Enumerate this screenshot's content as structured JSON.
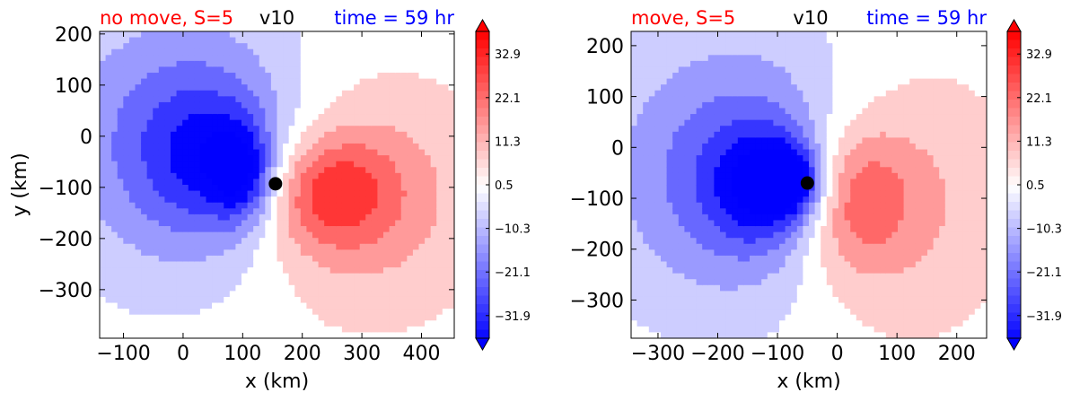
{
  "chart_data": [
    {
      "type": "heatmap",
      "title_left": "no move, S=5",
      "title_center": "v10",
      "title_right": "time = 59 hr",
      "xlabel": "x (km)",
      "ylabel": "y (km)",
      "xlim": [
        -140,
        455
      ],
      "ylim": [
        -395,
        205
      ],
      "xticks": [
        -100,
        0,
        100,
        200,
        300,
        400
      ],
      "yticks": [
        -300,
        -200,
        -100,
        0,
        100,
        200
      ],
      "marker": {
        "x": 155,
        "y": -93
      },
      "field": {
        "neg_lobes": [
          {
            "x": 0,
            "y": -10,
            "rx": 210,
            "ry": 260,
            "v": -6
          },
          {
            "x": 55,
            "y": -45,
            "rx": 110,
            "ry": 140,
            "v": -5
          },
          {
            "x": 100,
            "y": -75,
            "rx": 50,
            "ry": 90,
            "v": -6
          }
        ],
        "pos_lobes": [
          {
            "x": 300,
            "y": -120,
            "rx": 200,
            "ry": 230,
            "v": 4
          },
          {
            "x": 240,
            "y": -110,
            "rx": 110,
            "ry": 110,
            "v": 6
          }
        ]
      },
      "colorbar": {
        "min": -37.5,
        "max": 38.5,
        "ticks": [
          32.9,
          22.1,
          11.3,
          0.5,
          -10.3,
          -21.1,
          -31.9
        ]
      }
    },
    {
      "type": "heatmap",
      "title_left": "move, S=5",
      "title_center": "v10",
      "title_right": "time = 59 hr",
      "xlabel": "x (km)",
      "ylabel": "",
      "xlim": [
        -345,
        250
      ],
      "ylim": [
        -375,
        228
      ],
      "xticks": [
        -300,
        -200,
        -100,
        0,
        100,
        200
      ],
      "yticks": [
        -300,
        -200,
        -100,
        0,
        100,
        200
      ],
      "marker": {
        "x": -50,
        "y": -70
      },
      "field": {
        "neg_lobes": [
          {
            "x": -150,
            "y": -50,
            "rx": 220,
            "ry": 260,
            "v": -7
          },
          {
            "x": -110,
            "y": -75,
            "rx": 90,
            "ry": 110,
            "v": -8
          },
          {
            "x": -75,
            "y": -65,
            "rx": 45,
            "ry": 60,
            "v": -6
          }
        ],
        "pos_lobes": [
          {
            "x": 80,
            "y": -100,
            "rx": 200,
            "ry": 260,
            "v": 4
          },
          {
            "x": 20,
            "y": -100,
            "rx": 100,
            "ry": 140,
            "v": 6
          }
        ]
      },
      "colorbar": {
        "min": -37.5,
        "max": 38.5,
        "ticks": [
          32.9,
          22.1,
          11.3,
          0.5,
          -10.3,
          -21.1,
          -31.9
        ]
      }
    }
  ],
  "colors": {
    "title_left": "#ff0000",
    "title_center": "#000000",
    "title_right": "#0000ff",
    "marker": "#000000"
  }
}
